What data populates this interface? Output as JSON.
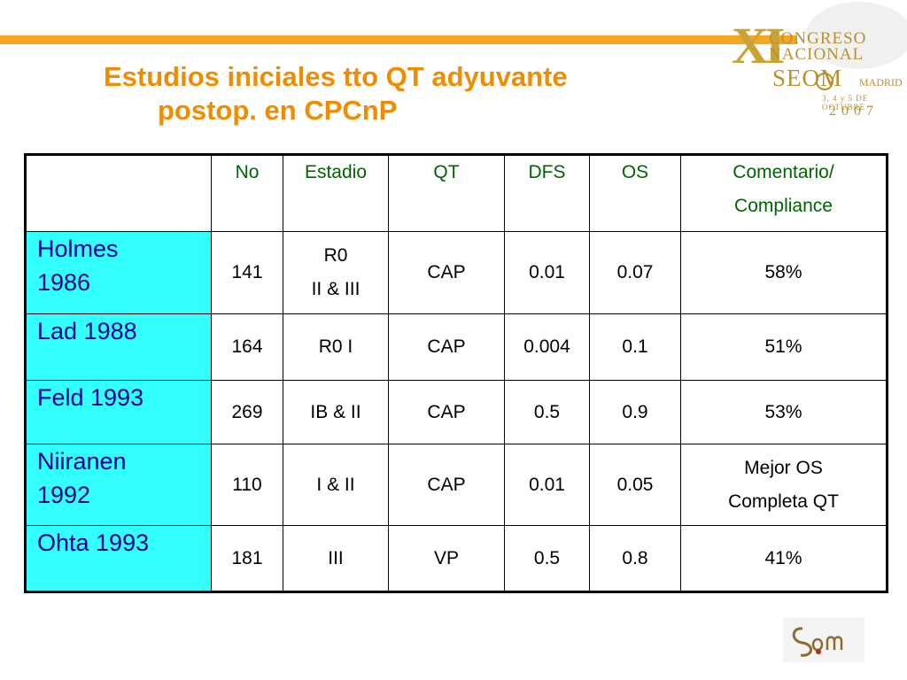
{
  "slide": {
    "title_line1": "Estudios iniciales tto QT adyuvante",
    "title_line2": "postop. en CPCnP"
  },
  "congress_logo": {
    "roman": "XI",
    "line1": "CONGRESO",
    "line2": "NACIONAL",
    "org": "SEOM",
    "city": "MADRID",
    "dates": "3, 4 y 5 DE OCTUBRE",
    "year": "2007"
  },
  "table": {
    "headers": [
      "",
      "No",
      "Estadio",
      "QT",
      "DFS",
      "OS",
      "Comentario/",
      "Compliance"
    ],
    "rows": [
      {
        "name1": "Holmes",
        "name2": "1986",
        "no": "141",
        "estadio1": "R0",
        "estadio2": "II & III",
        "qt": "CAP",
        "dfs": "0.01",
        "os": "0.07",
        "comment1": "58%",
        "comment2": ""
      },
      {
        "name1": "Lad 1988",
        "name2": "",
        "no": "164",
        "estadio1": "R0 I",
        "estadio2": "",
        "qt": "CAP",
        "dfs": "0.004",
        "os": "0.1",
        "comment1": "51%",
        "comment2": ""
      },
      {
        "name1": "Feld 1993",
        "name2": "",
        "no": "269",
        "estadio1": "IB & II",
        "estadio2": "",
        "qt": "CAP",
        "dfs": "0.5",
        "os": "0.9",
        "comment1": "53%",
        "comment2": ""
      },
      {
        "name1": "Niiranen",
        "name2": "1992",
        "no": "110",
        "estadio1": "I & II",
        "estadio2": "",
        "qt": "CAP",
        "dfs": "0.01",
        "os": "0.05",
        "comment1": "Mejor OS",
        "comment2": "Completa QT"
      },
      {
        "name1": "Ohta 1993",
        "name2": "",
        "no": "181",
        "estadio1": "III",
        "estadio2": "",
        "qt": "VP",
        "dfs": "0.5",
        "os": "0.8",
        "comment1": "41%",
        "comment2": ""
      }
    ]
  },
  "colors": {
    "title": "#f08c00",
    "header_text": "#006400",
    "name_bg": "#33ffff",
    "name_text": "#000099",
    "rule": "#f5a623"
  }
}
